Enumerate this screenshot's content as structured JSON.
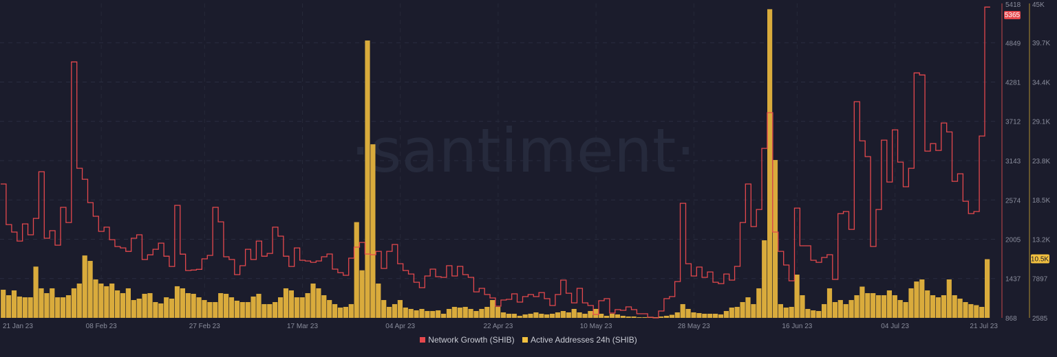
{
  "chart_data": {
    "type": "line+bar",
    "watermark": "·santiment·",
    "x_start": "2023-01-21",
    "x_step": "1 day",
    "x_ticks": [
      {
        "label": "21 Jan 23",
        "date": "2023-01-21"
      },
      {
        "label": "08 Feb 23",
        "date": "2023-02-08"
      },
      {
        "label": "27 Feb 23",
        "date": "2023-02-27"
      },
      {
        "label": "17 Mar 23",
        "date": "2023-03-17"
      },
      {
        "label": "04 Apr 23",
        "date": "2023-04-04"
      },
      {
        "label": "22 Apr 23",
        "date": "2023-04-22"
      },
      {
        "label": "10 May 23",
        "date": "2023-05-10"
      },
      {
        "label": "28 May 23",
        "date": "2023-05-28"
      },
      {
        "label": "16 Jun 23",
        "date": "2023-06-16"
      },
      {
        "label": "04 Jul 23",
        "date": "2023-07-04"
      },
      {
        "label": "21 Jul 23",
        "date": "2023-07-21"
      }
    ],
    "grid": true,
    "legend_placement": "bottom",
    "series": [
      {
        "name": "Network Growth (SHIB)",
        "type": "step-line",
        "axis": "left",
        "color": "#e5484d",
        "ylim": [
          868,
          5418
        ],
        "ticks": [
          5418,
          4849,
          4281,
          3712,
          3143,
          2574,
          2005,
          1437,
          868
        ],
        "tick_labels": [
          "5418",
          "4849",
          "4281",
          "3712",
          "3143",
          "2574",
          "2005",
          "1437",
          "868"
        ],
        "last_value_label": "5365",
        "values": [
          2805,
          2218,
          2110,
          1980,
          2228,
          2070,
          2308,
          2983,
          2020,
          2130,
          1920,
          2467,
          2248,
          4572,
          3033,
          2874,
          2536,
          2338,
          2120,
          2180,
          2000,
          1900,
          1880,
          1830,
          2020,
          2070,
          1712,
          1780,
          1860,
          1950,
          1760,
          1612,
          2496,
          1790,
          1553,
          1560,
          1570,
          1722,
          1772,
          2467,
          2258,
          1752,
          1712,
          1494,
          1623,
          1860,
          1712,
          1980,
          1760,
          1801,
          2180,
          2050,
          1760,
          1612,
          1880,
          1702,
          1692,
          1672,
          1692,
          1752,
          1792,
          1573,
          1523,
          1484,
          1732,
          1891,
          1960,
          1792,
          1782,
          1831,
          1583,
          1831,
          1930,
          1652,
          1553,
          1503,
          1384,
          1305,
          1474,
          1573,
          1464,
          1454,
          1623,
          1474,
          1613,
          1494,
          1454,
          1245,
          1295,
          1206,
          1156,
          1037,
          1126,
          1136,
          1216,
          1096,
          1176,
          1206,
          1176,
          1235,
          1146,
          1047,
          1206,
          1414,
          1225,
          1086,
          1295,
          1086,
          1047,
          918,
          1116,
          1146,
          938,
          987,
          977,
          1027,
          987,
          928,
          928,
          878,
          868,
          967,
          1146,
          1176,
          1394,
          2526,
          1652,
          1474,
          1603,
          1454,
          1533,
          1384,
          1364,
          1503,
          1414,
          1613,
          2248,
          2805,
          2189,
          2437,
          3321,
          3837,
          2110,
          1831,
          1633,
          1404,
          2457,
          1911,
          1911,
          1702,
          1672,
          1742,
          1782,
          1424,
          2377,
          2407,
          2149,
          3996,
          3430,
          3202,
          1901,
          2437,
          3440,
          2834,
          3589,
          3122,
          2765,
          3033,
          4413,
          4383,
          3281,
          3390,
          3291,
          3688,
          3559,
          2844,
          2953,
          2556,
          2377,
          2407,
          3500,
          5365
        ]
      },
      {
        "name": "Active Addresses 24h (SHIB)",
        "type": "bar",
        "axis": "right",
        "color": "#d9ab3c",
        "ylim": [
          2585,
          45000
        ],
        "ticks": [
          45000,
          39700,
          34400,
          29100,
          23800,
          18500,
          13200,
          7897,
          2585
        ],
        "tick_labels": [
          "45K",
          "39.7K",
          "34.4K",
          "29.1K",
          "23.8K",
          "18.5K",
          "13.2K",
          "7897",
          "2585"
        ],
        "last_value_label": "10.5K",
        "values": [
          6380,
          5640,
          6290,
          5460,
          5360,
          5360,
          9500,
          6570,
          5920,
          6570,
          5360,
          5360,
          5640,
          6570,
          7215,
          11000,
          10270,
          7770,
          7215,
          6850,
          7215,
          6290,
          5920,
          6570,
          4990,
          5180,
          5830,
          5920,
          4715,
          4530,
          5360,
          5180,
          6850,
          6570,
          5920,
          5830,
          5360,
          4990,
          4715,
          4715,
          5920,
          5830,
          5360,
          4900,
          4715,
          4715,
          5460,
          5830,
          4440,
          4440,
          4715,
          5360,
          6570,
          6290,
          5360,
          5360,
          5920,
          7215,
          6570,
          5640,
          4990,
          4440,
          3975,
          4065,
          4440,
          15500,
          9000,
          40000,
          26000,
          7215,
          4990,
          4065,
          4440,
          4990,
          3975,
          3790,
          3600,
          3790,
          3510,
          3510,
          3600,
          3140,
          3790,
          4065,
          3975,
          4065,
          3790,
          3510,
          3790,
          4065,
          4990,
          4065,
          3325,
          3140,
          3140,
          2860,
          3050,
          3140,
          3325,
          3140,
          3050,
          3140,
          3325,
          3510,
          3325,
          3790,
          3325,
          3140,
          3510,
          3790,
          3140,
          2860,
          3140,
          3050,
          2860,
          2770,
          2770,
          2680,
          2680,
          2680,
          2680,
          2770,
          2860,
          3000,
          3325,
          4440,
          3790,
          3325,
          3230,
          3140,
          3140,
          3140,
          3050,
          3510,
          3975,
          4065,
          4715,
          5360,
          4440,
          6570,
          13050,
          44220,
          23880,
          4440,
          3975,
          4065,
          8420,
          5640,
          3790,
          3600,
          3510,
          4440,
          6570,
          4715,
          4990,
          4440,
          4990,
          5640,
          6800,
          5920,
          5920,
          5640,
          5640,
          6290,
          5640,
          4990,
          4715,
          6570,
          7490,
          7770,
          6290,
          5640,
          5360,
          5640,
          7770,
          5640,
          5180,
          4715,
          4440,
          4300,
          4065,
          10500
        ]
      }
    ]
  }
}
